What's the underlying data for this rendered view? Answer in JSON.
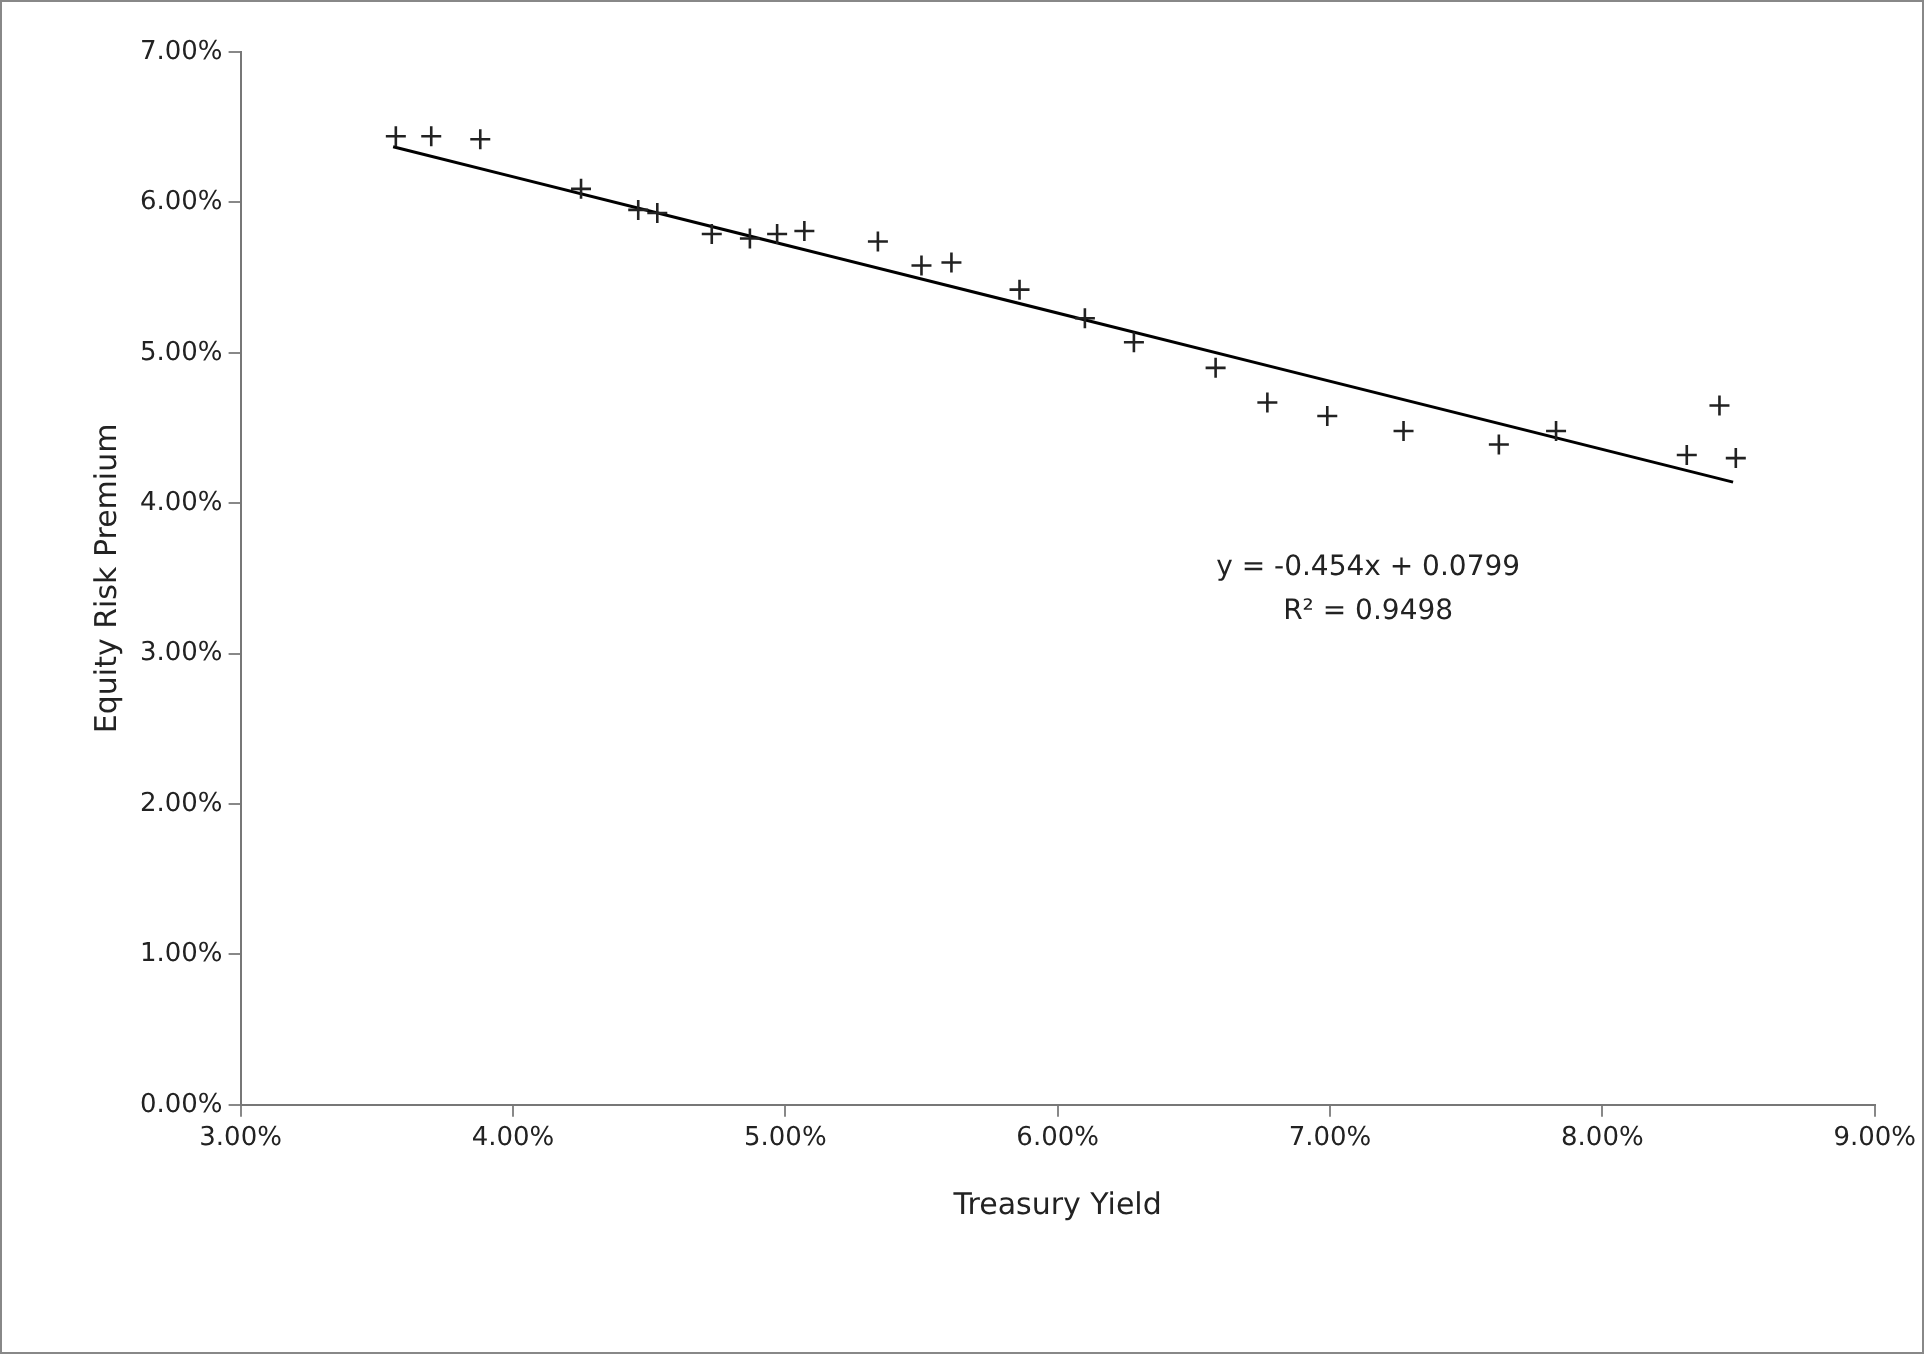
{
  "chart_data": {
    "type": "scatter",
    "xlabel": "Treasury Yield",
    "ylabel": "Equity Risk Premium",
    "xlim": [
      3,
      9
    ],
    "ylim": [
      0,
      7
    ],
    "xticks": [
      {
        "value": 3,
        "label": "3.00%"
      },
      {
        "value": 4,
        "label": "4.00%"
      },
      {
        "value": 5,
        "label": "5.00%"
      },
      {
        "value": 6,
        "label": "6.00%"
      },
      {
        "value": 7,
        "label": "7.00%"
      },
      {
        "value": 8,
        "label": "8.00%"
      },
      {
        "value": 9,
        "label": "9.00%"
      }
    ],
    "yticks": [
      {
        "value": 0,
        "label": "0.00%"
      },
      {
        "value": 1,
        "label": "1.00%"
      },
      {
        "value": 2,
        "label": "2.00%"
      },
      {
        "value": 3,
        "label": "3.00%"
      },
      {
        "value": 4,
        "label": "4.00%"
      },
      {
        "value": 5,
        "label": "5.00%"
      },
      {
        "value": 6,
        "label": "6.00%"
      },
      {
        "value": 7,
        "label": "7.00%"
      }
    ],
    "grid": false,
    "legend": false,
    "marker": "cross",
    "series": [
      {
        "type": "scatter",
        "color": "#222222",
        "x": [
          3.57,
          3.7,
          3.88,
          4.25,
          4.46,
          4.53,
          4.73,
          4.87,
          4.97,
          5.07,
          5.34,
          5.5,
          5.61,
          5.86,
          6.1,
          6.28,
          6.58,
          6.77,
          6.99,
          7.27,
          7.62,
          7.83,
          8.31,
          8.43,
          8.49
        ],
        "values": [
          6.44,
          6.44,
          6.42,
          6.09,
          5.95,
          5.93,
          5.79,
          5.76,
          5.79,
          5.81,
          5.74,
          5.58,
          5.6,
          5.42,
          5.23,
          5.07,
          4.9,
          4.67,
          4.58,
          4.48,
          4.39,
          4.48,
          4.32,
          4.65,
          4.3
        ]
      },
      {
        "type": "line",
        "color": "#000000",
        "line_style": "solid",
        "marker": "none",
        "x": [
          3.56,
          8.48
        ],
        "values": [
          6.37,
          4.14
        ]
      }
    ],
    "annotations": [
      "y = -0.454x + 0.0799",
      "R² = 0.9498"
    ]
  }
}
